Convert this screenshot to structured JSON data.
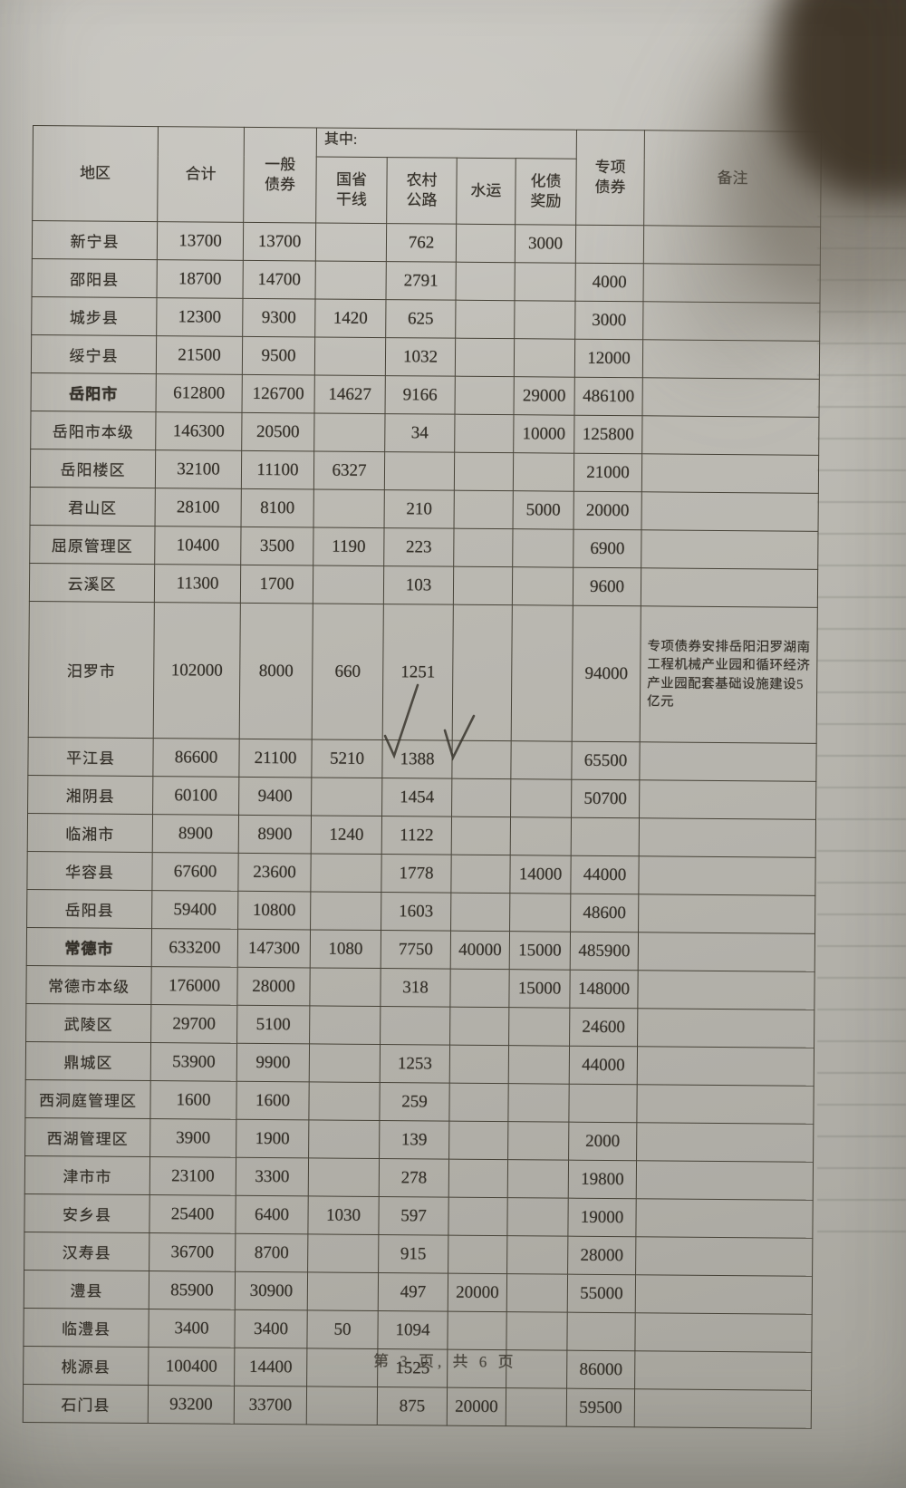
{
  "colors": {
    "paper": "#bdbbb4",
    "table_line": "#474338",
    "ink": "#35312a",
    "shadow_blob": "#43392c"
  },
  "page": {
    "footer": "第 3 页, 共 6 页"
  },
  "table": {
    "headers": {
      "region": "地区",
      "total": "合计",
      "general": "一般\n债券",
      "qizhong": "其中:",
      "trunk": "国省\n干线",
      "rural": "农村\n公路",
      "water": "水运",
      "debt": "化债\n奖励",
      "special": "专项\n债券",
      "remark": "备注"
    },
    "rows": [
      {
        "region": "新宁县",
        "total": "13700",
        "general": "13700",
        "trunk": "",
        "rural": "762",
        "water": "",
        "debt": "3000",
        "special": "",
        "remark": ""
      },
      {
        "region": "邵阳县",
        "total": "18700",
        "general": "14700",
        "trunk": "",
        "rural": "2791",
        "water": "",
        "debt": "",
        "special": "4000",
        "remark": ""
      },
      {
        "region": "城步县",
        "total": "12300",
        "general": "9300",
        "trunk": "1420",
        "rural": "625",
        "water": "",
        "debt": "",
        "special": "3000",
        "remark": ""
      },
      {
        "region": "绥宁县",
        "total": "21500",
        "general": "9500",
        "trunk": "",
        "rural": "1032",
        "water": "",
        "debt": "",
        "special": "12000",
        "remark": ""
      },
      {
        "region": "岳阳市",
        "total": "612800",
        "general": "126700",
        "trunk": "14627",
        "rural": "9166",
        "water": "",
        "debt": "29000",
        "special": "486100",
        "remark": "",
        "emphasis": true
      },
      {
        "region": "岳阳市本级",
        "total": "146300",
        "general": "20500",
        "trunk": "",
        "rural": "34",
        "water": "",
        "debt": "10000",
        "special": "125800",
        "remark": ""
      },
      {
        "region": "岳阳楼区",
        "total": "32100",
        "general": "11100",
        "trunk": "6327",
        "rural": "",
        "water": "",
        "debt": "",
        "special": "21000",
        "remark": ""
      },
      {
        "region": "君山区",
        "total": "28100",
        "general": "8100",
        "trunk": "",
        "rural": "210",
        "water": "",
        "debt": "5000",
        "special": "20000",
        "remark": ""
      },
      {
        "region": "屈原管理区",
        "total": "10400",
        "general": "3500",
        "trunk": "1190",
        "rural": "223",
        "water": "",
        "debt": "",
        "special": "6900",
        "remark": ""
      },
      {
        "region": "云溪区",
        "total": "11300",
        "general": "1700",
        "trunk": "",
        "rural": "103",
        "water": "",
        "debt": "",
        "special": "9600",
        "remark": ""
      },
      {
        "region": "汨罗市",
        "total": "102000",
        "general": "8000",
        "trunk": "660",
        "rural": "1251",
        "water": "",
        "debt": "",
        "special": "94000",
        "remark": "专项债券安排岳阳汨罗湖南工程机械产业园和循环经济产业园配套基础设施建设5亿元",
        "tall": true
      },
      {
        "region": "平江县",
        "total": "86600",
        "general": "21100",
        "trunk": "5210",
        "rural": "1388",
        "water": "",
        "debt": "",
        "special": "65500",
        "remark": ""
      },
      {
        "region": "湘阴县",
        "total": "60100",
        "general": "9400",
        "trunk": "",
        "rural": "1454",
        "water": "",
        "debt": "",
        "special": "50700",
        "remark": ""
      },
      {
        "region": "临湘市",
        "total": "8900",
        "general": "8900",
        "trunk": "1240",
        "rural": "1122",
        "water": "",
        "debt": "",
        "special": "",
        "remark": "",
        "checks": [
          "trunk",
          "rural"
        ]
      },
      {
        "region": "华容县",
        "total": "67600",
        "general": "23600",
        "trunk": "",
        "rural": "1778",
        "water": "",
        "debt": "14000",
        "special": "44000",
        "remark": ""
      },
      {
        "region": "岳阳县",
        "total": "59400",
        "general": "10800",
        "trunk": "",
        "rural": "1603",
        "water": "",
        "debt": "",
        "special": "48600",
        "remark": ""
      },
      {
        "region": "常德市",
        "total": "633200",
        "general": "147300",
        "trunk": "1080",
        "rural": "7750",
        "water": "40000",
        "debt": "15000",
        "special": "485900",
        "remark": "",
        "emphasis": true
      },
      {
        "region": "常德市本级",
        "total": "176000",
        "general": "28000",
        "trunk": "",
        "rural": "318",
        "water": "",
        "debt": "15000",
        "special": "148000",
        "remark": ""
      },
      {
        "region": "武陵区",
        "total": "29700",
        "general": "5100",
        "trunk": "",
        "rural": "",
        "water": "",
        "debt": "",
        "special": "24600",
        "remark": ""
      },
      {
        "region": "鼎城区",
        "total": "53900",
        "general": "9900",
        "trunk": "",
        "rural": "1253",
        "water": "",
        "debt": "",
        "special": "44000",
        "remark": ""
      },
      {
        "region": "西洞庭管理区",
        "total": "1600",
        "general": "1600",
        "trunk": "",
        "rural": "259",
        "water": "",
        "debt": "",
        "special": "",
        "remark": ""
      },
      {
        "region": "西湖管理区",
        "total": "3900",
        "general": "1900",
        "trunk": "",
        "rural": "139",
        "water": "",
        "debt": "",
        "special": "2000",
        "remark": ""
      },
      {
        "region": "津市市",
        "total": "23100",
        "general": "3300",
        "trunk": "",
        "rural": "278",
        "water": "",
        "debt": "",
        "special": "19800",
        "remark": ""
      },
      {
        "region": "安乡县",
        "total": "25400",
        "general": "6400",
        "trunk": "1030",
        "rural": "597",
        "water": "",
        "debt": "",
        "special": "19000",
        "remark": ""
      },
      {
        "region": "汉寿县",
        "total": "36700",
        "general": "8700",
        "trunk": "",
        "rural": "915",
        "water": "",
        "debt": "",
        "special": "28000",
        "remark": ""
      },
      {
        "region": "澧县",
        "total": "85900",
        "general": "30900",
        "trunk": "",
        "rural": "497",
        "water": "20000",
        "debt": "",
        "special": "55000",
        "remark": ""
      },
      {
        "region": "临澧县",
        "total": "3400",
        "general": "3400",
        "trunk": "50",
        "rural": "1094",
        "water": "",
        "debt": "",
        "special": "",
        "remark": ""
      },
      {
        "region": "桃源县",
        "total": "100400",
        "general": "14400",
        "trunk": "",
        "rural": "1525",
        "water": "",
        "debt": "",
        "special": "86000",
        "remark": ""
      },
      {
        "region": "石门县",
        "total": "93200",
        "general": "33700",
        "trunk": "",
        "rural": "875",
        "water": "20000",
        "debt": "",
        "special": "59500",
        "remark": ""
      }
    ]
  },
  "annotations": {
    "check_symbol": "✓",
    "ticks": [
      {
        "row": "临湘市",
        "after_value": "1240",
        "column": "trunk"
      },
      {
        "row": "临湘市",
        "after_value": "1122",
        "column": "rural"
      }
    ]
  }
}
